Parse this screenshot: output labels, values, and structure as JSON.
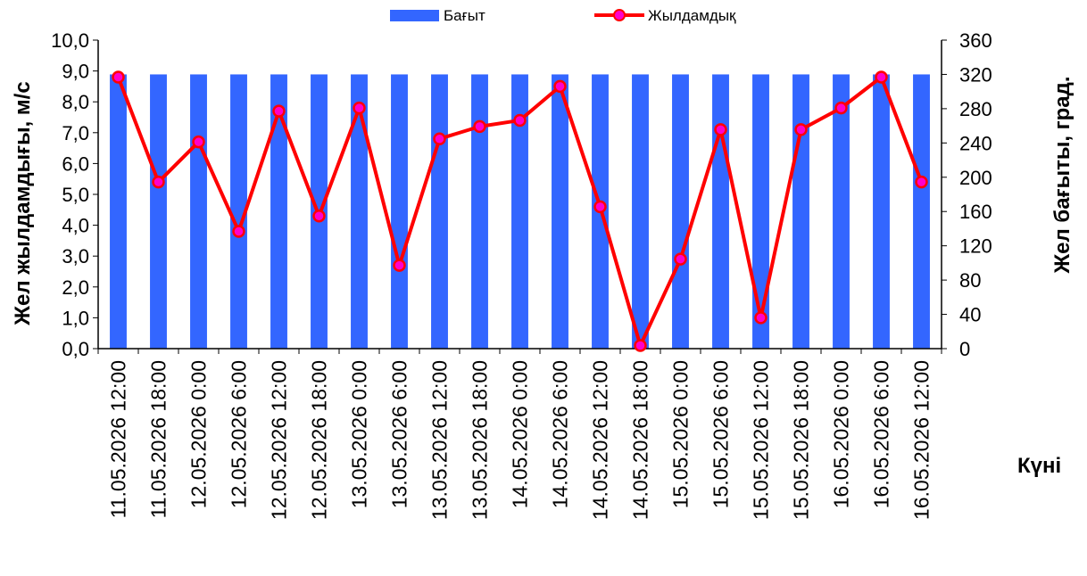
{
  "chart_data": {
    "type": "bar+line",
    "categories": [
      "11.05.2026 12:00",
      "11.05.2026 18:00",
      "12.05.2026 0:00",
      "12.05.2026 6:00",
      "12.05.2026 12:00",
      "12.05.2026 18:00",
      "13.05.2026 0:00",
      "13.05.2026 6:00",
      "13.05.2026 12:00",
      "13.05.2026 18:00",
      "14.05.2026 0:00",
      "14.05.2026 6:00",
      "14.05.2026 12:00",
      "14.05.2026 18:00",
      "15.05.2026 0:00",
      "15.05.2026 6:00",
      "15.05.2026 12:00",
      "15.05.2026 18:00",
      "16.05.2026 0:00",
      "16.05.2026 6:00",
      "16.05.2026 12:00"
    ],
    "series": [
      {
        "name": "Бағыт",
        "type": "bar",
        "axis": "right",
        "color": "#3366ff",
        "values": [
          320,
          320,
          320,
          320,
          320,
          320,
          320,
          320,
          320,
          320,
          320,
          320,
          320,
          320,
          320,
          320,
          320,
          320,
          320,
          320,
          320
        ]
      },
      {
        "name": "Жылдамдық",
        "type": "line",
        "axis": "left",
        "color": "#ff0000",
        "marker_color": "#ff00cc",
        "values": [
          8.8,
          5.4,
          6.7,
          3.8,
          7.7,
          4.3,
          7.8,
          2.7,
          6.8,
          7.2,
          7.4,
          8.5,
          4.6,
          0.1,
          2.9,
          7.1,
          1.0,
          7.1,
          7.8,
          8.8,
          5.4
        ]
      }
    ],
    "ylabel_left": "Жел жылдамдығы, м/с",
    "ylabel_right": "Жел бағыты, град.",
    "xlabel": "Күні",
    "ylim_left": [
      0,
      10
    ],
    "ylim_right": [
      0,
      360
    ],
    "yticks_left": [
      "0,0",
      "1,0",
      "2,0",
      "3,0",
      "4,0",
      "5,0",
      "6,0",
      "7,0",
      "8,0",
      "9,0",
      "10,0"
    ],
    "yticks_right": [
      "0",
      "40",
      "80",
      "120",
      "160",
      "200",
      "240",
      "280",
      "320",
      "360"
    ],
    "legend_position": "top",
    "grid": false
  }
}
